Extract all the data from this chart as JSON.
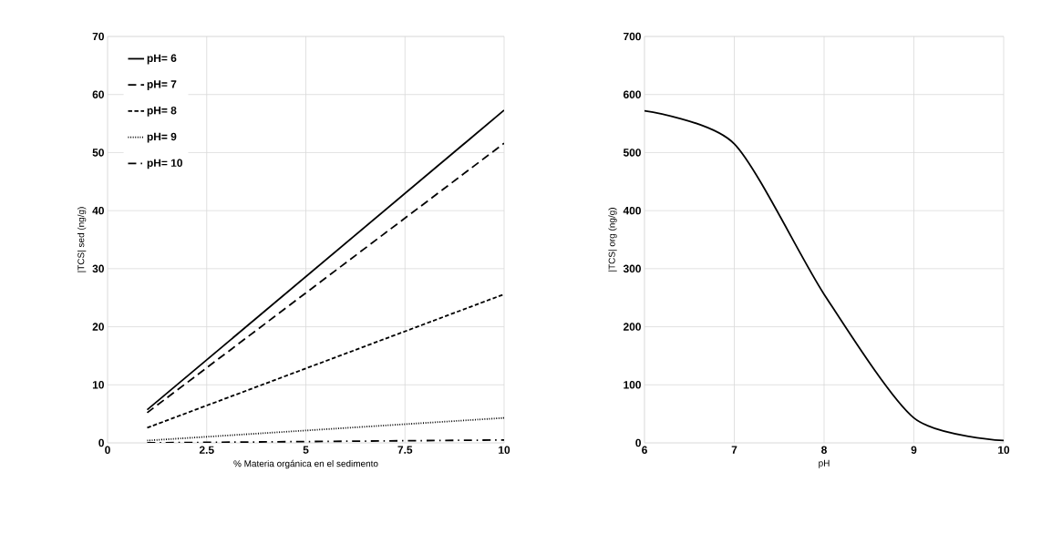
{
  "chart_data": [
    {
      "type": "line",
      "xlabel": "% Materia orgánica en el sedimento",
      "ylabel": "|TCS| sed (ng/g)",
      "x": [
        1,
        10
      ],
      "xlim": [
        0,
        10
      ],
      "xticks": [
        0,
        2.5,
        5,
        7.5,
        10
      ],
      "ylim": [
        0,
        70
      ],
      "yticks": [
        0,
        10,
        20,
        30,
        40,
        50,
        60,
        70
      ],
      "grid": true,
      "legend": "top left",
      "series": [
        {
          "name": "pH= 6",
          "color": "#000000",
          "line_style": "solid",
          "values": [
            5.7,
            57.3
          ]
        },
        {
          "name": "pH= 7",
          "color": "#000000",
          "line_style": "longdashed",
          "values": [
            5.2,
            51.6
          ]
        },
        {
          "name": "pH= 8",
          "color": "#000000",
          "line_style": "dashed",
          "values": [
            2.6,
            25.6
          ]
        },
        {
          "name": "pH= 9",
          "color": "#000000",
          "line_style": "dotted",
          "values": [
            0.4,
            4.3
          ]
        },
        {
          "name": "pH= 10",
          "color": "#000000",
          "line_style": "dashdotted",
          "values": [
            0,
            0.5
          ]
        }
      ]
    },
    {
      "type": "line",
      "xlabel": "pH",
      "ylabel": "|TCS| org (ng/g)",
      "x": [
        6,
        7,
        8,
        9,
        10
      ],
      "xlim": [
        6,
        10
      ],
      "xticks": [
        6,
        7,
        8,
        9,
        10
      ],
      "ylim": [
        0,
        700
      ],
      "yticks": [
        0,
        100,
        200,
        300,
        400,
        500,
        600,
        700
      ],
      "grid": true,
      "series": [
        {
          "color": "#000000",
          "line_style": "solid",
          "values": [
            572,
            515,
            256,
            43,
            4
          ]
        }
      ]
    }
  ]
}
